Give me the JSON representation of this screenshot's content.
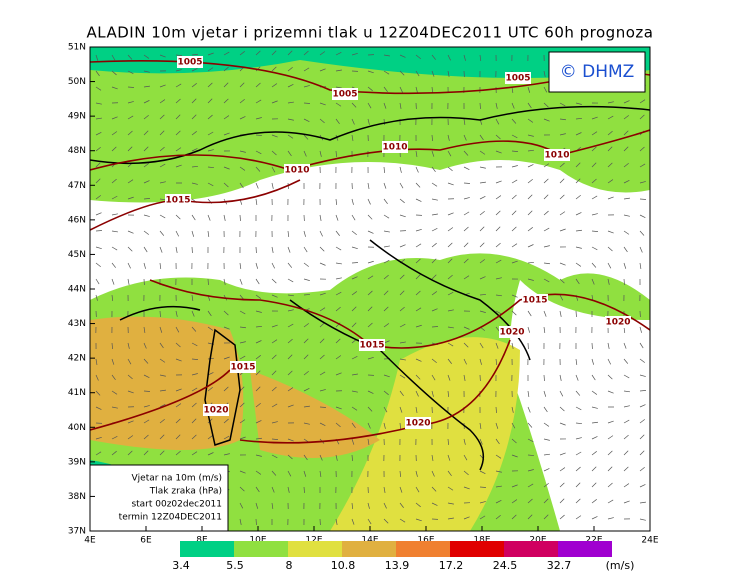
{
  "title": "ALADIN 10m vjetar i prizemni tlak u 12Z04DEC2011 UTC 60h prognoza",
  "credit": "© DHMZ",
  "lat_labels": [
    "51N",
    "50N",
    "49N",
    "48N",
    "47N",
    "46N",
    "45N",
    "44N",
    "43N",
    "42N",
    "41N",
    "40N",
    "39N",
    "38N",
    "37N"
  ],
  "lon_labels": [
    "4E",
    "6E",
    "8E",
    "10E",
    "12E",
    "14E",
    "16E",
    "18E",
    "20E",
    "22E",
    "24E"
  ],
  "isobar_labels": [
    "1005",
    "1005",
    "1005",
    "1010",
    "1010",
    "1010",
    "1015",
    "1015",
    "1015",
    "1015",
    "1020",
    "1020",
    "1020",
    "1020"
  ],
  "legend": [
    "Vjetar na 10m (m/s)",
    "Tlak zraka (hPa)",
    "start 00z02dec2011",
    "termin 12Z04DEC2011"
  ],
  "colorbar": {
    "labels": [
      3.4,
      5.5,
      8,
      10.8,
      13.9,
      17.2,
      24.5,
      32.7
    ],
    "colors": [
      "#00d084",
      "#90e040",
      "#e0e040",
      "#e0b040",
      "#f08030",
      "#e00000",
      "#d00060",
      "#a000d0"
    ],
    "unit": "(m/s)"
  }
}
